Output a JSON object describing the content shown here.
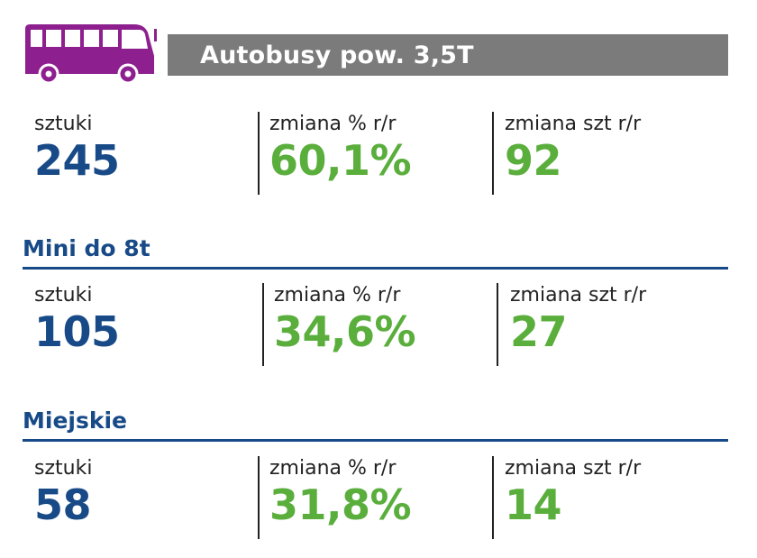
{
  "header": {
    "title": "Autobusy pow. 3,5T",
    "icon": "bus-icon",
    "icon_color": "#8e1f8f",
    "banner_color": "#7b7b7b"
  },
  "colors": {
    "primary_blue": "#174a87",
    "accent_green": "#5aae3c"
  },
  "summary": {
    "units_label": "sztuki",
    "units_value": "245",
    "pct_label": "zmiana % r/r",
    "pct_value": "60,1%",
    "diff_label": "zmiana szt r/r",
    "diff_value": "92"
  },
  "mini": {
    "title": "Mini do 8t",
    "units_label": "sztuki",
    "units_value": "105",
    "pct_label": "zmiana % r/r",
    "pct_value": "34,6%",
    "diff_label": "zmiana szt r/r",
    "diff_value": "27"
  },
  "city": {
    "title": "Miejskie",
    "units_label": "sztuki",
    "units_value": "58",
    "pct_label": "zmiana % r/r",
    "pct_value": "31,8%",
    "diff_label": "zmiana szt r/r",
    "diff_value": "14"
  }
}
